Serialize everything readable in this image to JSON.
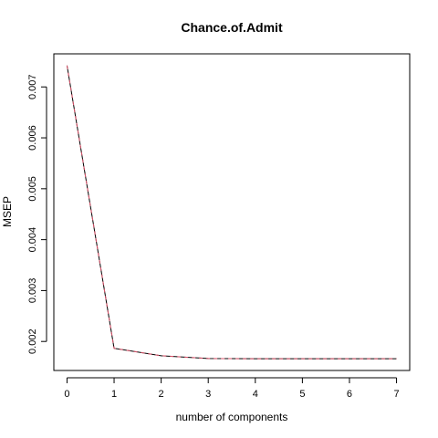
{
  "chart_data": {
    "type": "line",
    "title": "Chance.of.Admit",
    "xlabel": "number of components",
    "ylabel": "MSEP",
    "x": [
      0,
      1,
      2,
      3,
      4,
      5,
      6,
      7
    ],
    "series": [
      {
        "values": [
          0.00742,
          0.001865,
          0.00172,
          0.001665,
          0.00166,
          0.00166,
          0.00166,
          0.00166
        ],
        "color": "#000000",
        "dash": "solid"
      },
      {
        "values": [
          0.00742,
          0.001865,
          0.00172,
          0.001665,
          0.00166,
          0.00166,
          0.00166,
          0.00166
        ],
        "color": "#DF536B",
        "dash": "dashed"
      }
    ],
    "x_ticks": [
      "0",
      "1",
      "2",
      "3",
      "4",
      "5",
      "6",
      "7"
    ],
    "y_ticks": [
      "0.002",
      "0.003",
      "0.004",
      "0.005",
      "0.006",
      "0.007"
    ],
    "y_tick_values": [
      0.002,
      0.003,
      0.004,
      0.005,
      0.006,
      0.007
    ],
    "xlim": [
      -0.28,
      7.28
    ],
    "ylim": [
      0.00143,
      0.00765
    ],
    "grid": false,
    "legend": "none",
    "box": true
  }
}
